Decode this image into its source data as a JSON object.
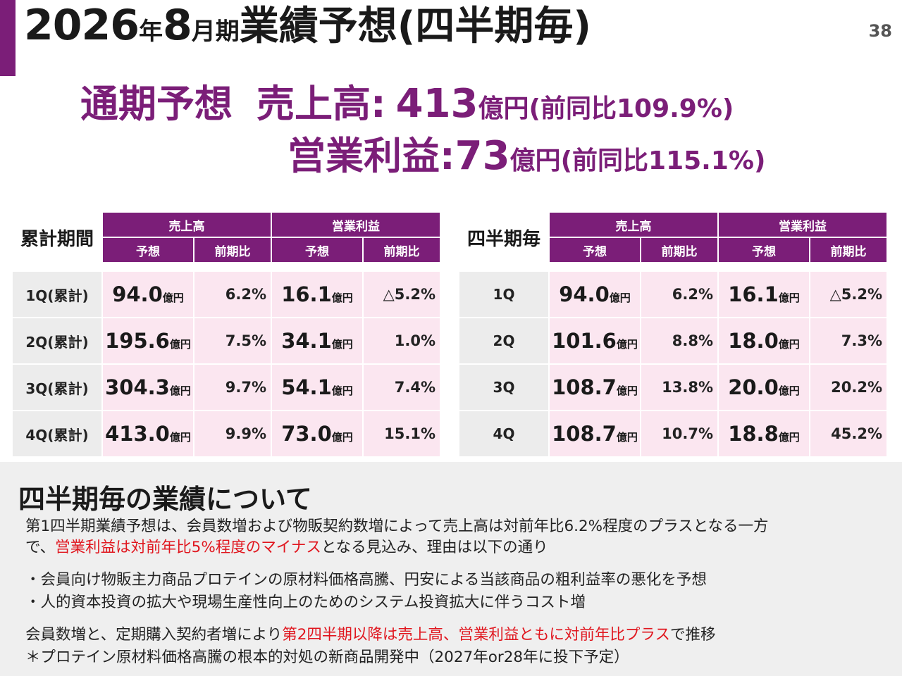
{
  "header": {
    "title_year": "2026",
    "title_year_suffix": "年",
    "title_month": "8",
    "title_month_suffix": "月期",
    "title_main": "業績予想(四半期毎)",
    "page_number": "38"
  },
  "headline": {
    "label": "通期予想",
    "sales_label": "売上高:",
    "sales_value": "413",
    "sales_unit": "億円",
    "sales_yoy": "(前同比109.9%)",
    "op_label": "営業利益:",
    "op_value": "73",
    "op_unit": "億円",
    "op_yoy": "(前同比115.1%)"
  },
  "cumulative_table": {
    "caption": "累計期間",
    "group_headers": [
      "売上高",
      "営業利益"
    ],
    "sub_headers": [
      "予想",
      "前期比",
      "予想",
      "前期比"
    ],
    "unit": "億円",
    "rows": [
      {
        "label": "1Q(累計)",
        "sales": "94.0",
        "sales_yoy": "6.2%",
        "op": "16.1",
        "op_yoy": "△5.2%"
      },
      {
        "label": "2Q(累計)",
        "sales": "195.6",
        "sales_yoy": "7.5%",
        "op": "34.1",
        "op_yoy": "1.0%"
      },
      {
        "label": "3Q(累計)",
        "sales": "304.3",
        "sales_yoy": "9.7%",
        "op": "54.1",
        "op_yoy": "7.4%"
      },
      {
        "label": "4Q(累計)",
        "sales": "413.0",
        "sales_yoy": "9.9%",
        "op": "73.0",
        "op_yoy": "15.1%"
      }
    ]
  },
  "quarterly_table": {
    "caption": "四半期毎",
    "group_headers": [
      "売上高",
      "営業利益"
    ],
    "sub_headers": [
      "予想",
      "前期比",
      "予想",
      "前期比"
    ],
    "unit": "億円",
    "rows": [
      {
        "label": "1Q",
        "sales": "94.0",
        "sales_yoy": "6.2%",
        "op": "16.1",
        "op_yoy": "△5.2%"
      },
      {
        "label": "2Q",
        "sales": "101.6",
        "sales_yoy": "8.8%",
        "op": "18.0",
        "op_yoy": "7.3%"
      },
      {
        "label": "3Q",
        "sales": "108.7",
        "sales_yoy": "13.8%",
        "op": "20.0",
        "op_yoy": "20.2%"
      },
      {
        "label": "4Q",
        "sales": "108.7",
        "sales_yoy": "10.7%",
        "op": "18.8",
        "op_yoy": "45.2%"
      }
    ]
  },
  "notes": {
    "title": "四半期毎の業績について",
    "para1_line1": "第1四半期業績予想は、会員数増および物販契約数増によって売上高は対前年比6.2%程度のプラスとなる一方",
    "para1_line2_a": "で、",
    "para1_line2_red": "営業利益は対前年比5%程度のマイナス",
    "para1_line2_b": "となる見込み、理由は以下の通り",
    "bullet1": "・会員向け物販主力商品プロテインの原材料価格高騰、円安による当該商品の粗利益率の悪化を予想",
    "bullet2": "・人的資本投資の拡大や現場生産性向上のためのシステム投資拡大に伴うコスト増",
    "para2_a": "会員数増と、定期購入契約者増により",
    "para2_red": "第2四半期以降は売上高、営業利益ともに対前年比プラス",
    "para2_b": "で推移",
    "para3": "＊プロテイン原材料価格高騰の根本的対処の新商品開発中（2027年or28年に投下予定）"
  },
  "colors": {
    "accent": "#7b1e78",
    "table_header": "#7b1e78",
    "cell_pink": "#fbe6f0",
    "cell_gray": "#ececec",
    "highlight_red": "#e0161e"
  }
}
